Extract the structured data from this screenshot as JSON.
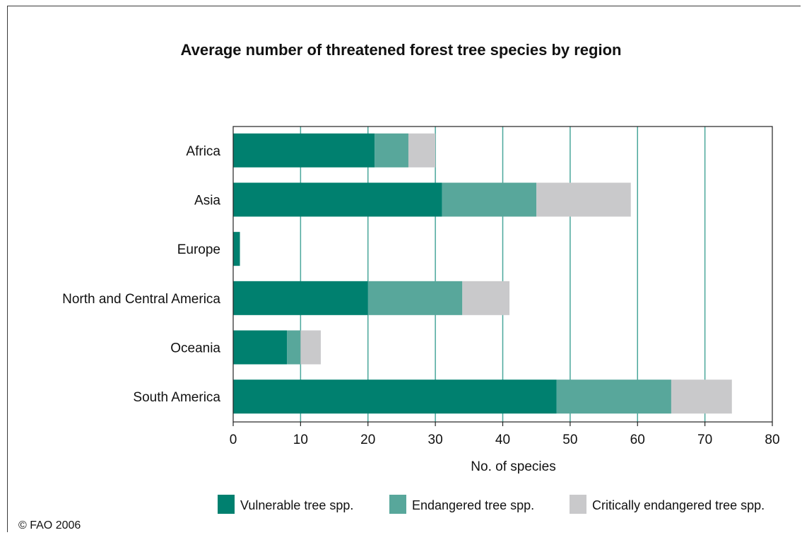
{
  "chart_data": {
    "type": "bar",
    "orientation": "horizontal",
    "stacked": true,
    "title": "Average number of threatened forest tree species by region",
    "xlabel": "No. of species",
    "ylabel": "",
    "xlim": [
      0,
      80
    ],
    "xticks": [
      0,
      10,
      20,
      30,
      40,
      50,
      60,
      70,
      80
    ],
    "grid": true,
    "legend_position": "bottom",
    "categories": [
      "Africa",
      "Asia",
      "Europe",
      "North and Central America",
      "Oceania",
      "South America"
    ],
    "series": [
      {
        "name": "Vulnerable tree spp.",
        "color": "#00806f",
        "values": [
          21,
          31,
          1,
          20,
          8,
          48
        ]
      },
      {
        "name": "Endangered tree spp.",
        "color": "#58a79b",
        "values": [
          5,
          14,
          0,
          14,
          2,
          17
        ]
      },
      {
        "name": "Critically endangered tree spp.",
        "color": "#c9c9cb",
        "values": [
          4,
          14,
          0,
          7,
          3,
          9
        ]
      }
    ]
  },
  "credit": "© FAO 2006"
}
